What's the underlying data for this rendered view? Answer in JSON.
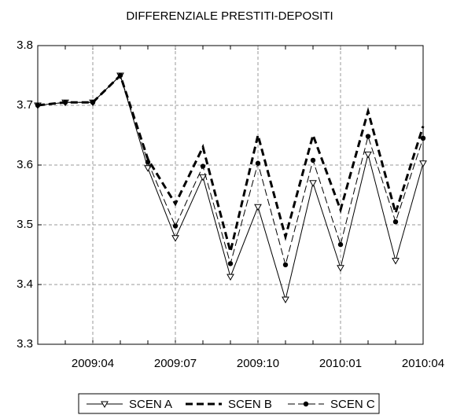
{
  "chart_data": {
    "type": "line",
    "title": "DIFFERENZIALE PRESTITI-DEPOSITI",
    "categories": [
      null,
      null,
      "2009:04",
      null,
      null,
      "2009:07",
      null,
      null,
      "2009:10",
      null,
      null,
      "2010:01",
      null,
      null,
      "2010:04"
    ],
    "series": [
      {
        "name": "SCEN A",
        "color": "#000000",
        "dash": "solid",
        "marker": "triangle-down",
        "values": [
          3.7,
          3.705,
          3.705,
          3.75,
          3.595,
          3.478,
          3.58,
          3.413,
          3.53,
          3.375,
          3.57,
          3.428,
          3.618,
          3.44,
          3.603
        ]
      },
      {
        "name": "SCEN B",
        "color": "#000000",
        "dash": "dashed",
        "marker": "none",
        "values": [
          3.7,
          3.705,
          3.705,
          3.75,
          3.61,
          3.535,
          3.63,
          3.455,
          3.65,
          3.48,
          3.65,
          3.525,
          3.69,
          3.52,
          3.665
        ]
      },
      {
        "name": "SCEN C",
        "color": "#000000",
        "dash": "dashdot",
        "marker": "circle",
        "values": [
          3.7,
          3.705,
          3.705,
          3.75,
          3.605,
          3.498,
          3.598,
          3.435,
          3.603,
          3.433,
          3.608,
          3.467,
          3.648,
          3.505,
          3.645
        ]
      }
    ],
    "ylim": [
      3.3,
      3.8
    ],
    "yticks": [
      3.3,
      3.4,
      3.5,
      3.6,
      3.7,
      3.8
    ],
    "grid": true,
    "legend": "bottom"
  }
}
